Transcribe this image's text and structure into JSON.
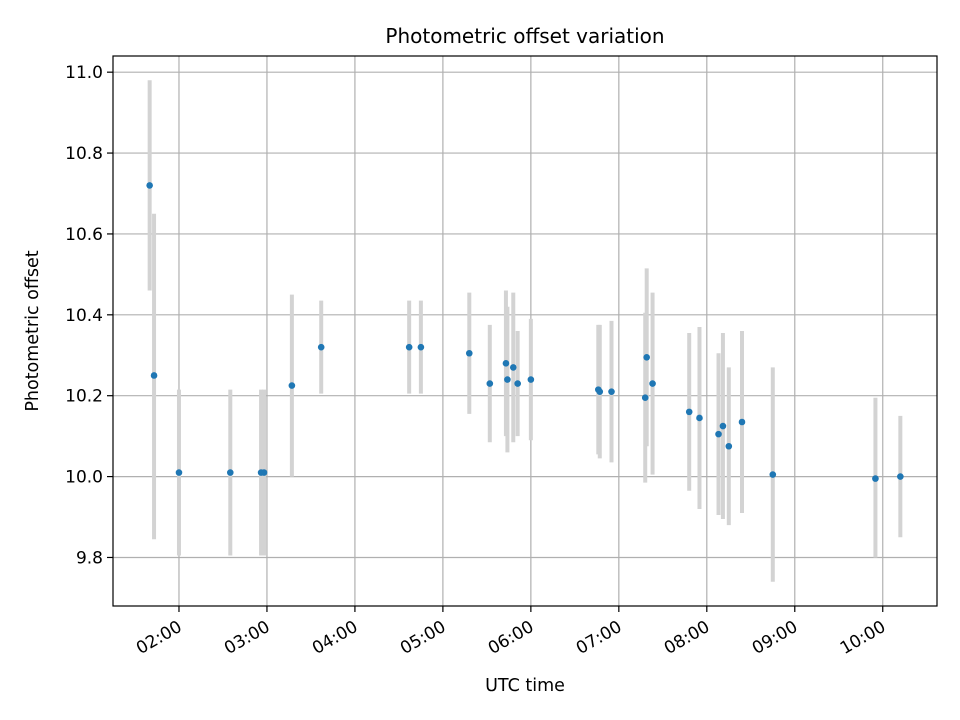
{
  "chart_data": {
    "type": "scatter",
    "title": "Photometric offset variation",
    "xlabel": "UTC time",
    "ylabel": "Photometric offset",
    "grid": true,
    "x_ticks": [
      "02:00",
      "03:00",
      "04:00",
      "05:00",
      "06:00",
      "07:00",
      "08:00",
      "09:00",
      "10:00"
    ],
    "y_ticks": [
      "9.8",
      "10.0",
      "10.2",
      "10.4",
      "10.6",
      "10.8",
      "11.0"
    ],
    "xlim": [
      "01:15",
      "10:37"
    ],
    "ylim": [
      9.68,
      11.04
    ],
    "marker_color": "#1f77b4",
    "errorbar_color": "#d3d3d3",
    "points": [
      {
        "x": "01:40",
        "y": 10.72,
        "lo": 10.46,
        "hi": 10.98
      },
      {
        "x": "01:43",
        "y": 10.25,
        "lo": 9.845,
        "hi": 10.65
      },
      {
        "x": "02:00",
        "y": 10.01,
        "lo": 9.805,
        "hi": 10.215
      },
      {
        "x": "02:35",
        "y": 10.01,
        "lo": 9.805,
        "hi": 10.215
      },
      {
        "x": "02:56",
        "y": 10.01,
        "lo": 9.805,
        "hi": 10.215
      },
      {
        "x": "02:58",
        "y": 10.01,
        "lo": 9.805,
        "hi": 10.215
      },
      {
        "x": "03:17",
        "y": 10.225,
        "lo": 10.0,
        "hi": 10.45
      },
      {
        "x": "03:37",
        "y": 10.32,
        "lo": 10.205,
        "hi": 10.435
      },
      {
        "x": "04:37",
        "y": 10.32,
        "lo": 10.205,
        "hi": 10.435
      },
      {
        "x": "04:45",
        "y": 10.32,
        "lo": 10.205,
        "hi": 10.435
      },
      {
        "x": "05:18",
        "y": 10.305,
        "lo": 10.155,
        "hi": 10.455
      },
      {
        "x": "05:32",
        "y": 10.23,
        "lo": 10.085,
        "hi": 10.375
      },
      {
        "x": "05:43",
        "y": 10.28,
        "lo": 10.1,
        "hi": 10.46
      },
      {
        "x": "05:44",
        "y": 10.24,
        "lo": 10.06,
        "hi": 10.42
      },
      {
        "x": "05:48",
        "y": 10.27,
        "lo": 10.085,
        "hi": 10.455
      },
      {
        "x": "05:51",
        "y": 10.23,
        "lo": 10.1,
        "hi": 10.36
      },
      {
        "x": "06:00",
        "y": 10.24,
        "lo": 10.09,
        "hi": 10.39
      },
      {
        "x": "06:46",
        "y": 10.215,
        "lo": 10.055,
        "hi": 10.375
      },
      {
        "x": "06:47",
        "y": 10.21,
        "lo": 10.045,
        "hi": 10.375
      },
      {
        "x": "06:55",
        "y": 10.21,
        "lo": 10.035,
        "hi": 10.385
      },
      {
        "x": "07:18",
        "y": 10.195,
        "lo": 9.985,
        "hi": 10.405
      },
      {
        "x": "07:19",
        "y": 10.295,
        "lo": 10.075,
        "hi": 10.515
      },
      {
        "x": "07:23",
        "y": 10.23,
        "lo": 10.005,
        "hi": 10.455
      },
      {
        "x": "07:48",
        "y": 10.16,
        "lo": 9.965,
        "hi": 10.355
      },
      {
        "x": "07:55",
        "y": 10.145,
        "lo": 9.92,
        "hi": 10.37
      },
      {
        "x": "08:08",
        "y": 10.105,
        "lo": 9.905,
        "hi": 10.305
      },
      {
        "x": "08:11",
        "y": 10.125,
        "lo": 9.895,
        "hi": 10.355
      },
      {
        "x": "08:15",
        "y": 10.075,
        "lo": 9.88,
        "hi": 10.27
      },
      {
        "x": "08:24",
        "y": 10.135,
        "lo": 9.91,
        "hi": 10.36
      },
      {
        "x": "08:45",
        "y": 10.005,
        "lo": 9.74,
        "hi": 10.27
      },
      {
        "x": "09:55",
        "y": 9.995,
        "lo": 9.8,
        "hi": 10.195
      },
      {
        "x": "10:12",
        "y": 10.0,
        "lo": 9.85,
        "hi": 10.15
      }
    ]
  }
}
